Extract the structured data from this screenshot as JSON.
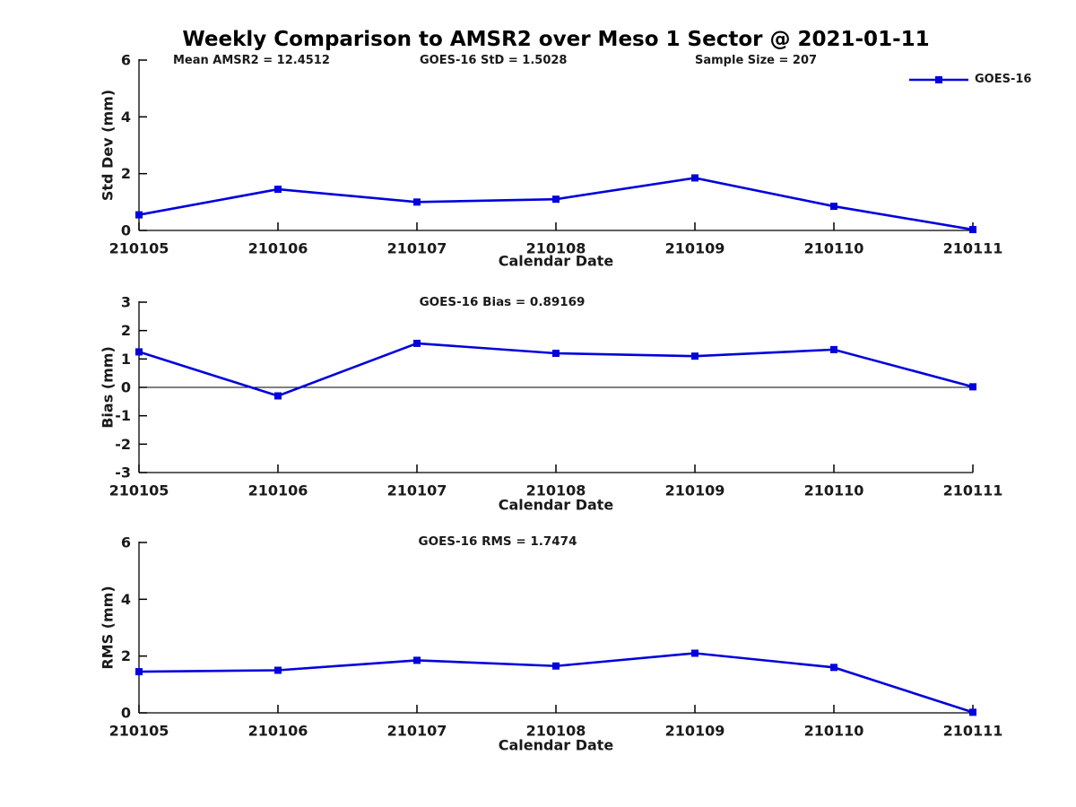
{
  "title": "Weekly Comparison to AMSR2 over Meso 1 Sector @ 2021-01-11",
  "legend": {
    "label": "GOES-16",
    "position": "top-right"
  },
  "colors": {
    "series": "#0000dd",
    "axis": "#000000",
    "text": "#1a1a1a",
    "background": "#ffffff",
    "zero_line": "#000000"
  },
  "chart_data": [
    {
      "type": "line",
      "panel": "std-dev",
      "title": "",
      "xlabel": "Calendar Date",
      "ylabel": "Std Dev (mm)",
      "categories": [
        "210105",
        "210106",
        "210107",
        "210108",
        "210109",
        "210110",
        "210111"
      ],
      "series": [
        {
          "name": "GOES-16",
          "values": [
            0.55,
            1.45,
            1.0,
            1.1,
            1.85,
            0.85,
            0.03
          ]
        }
      ],
      "ylim": [
        0,
        6
      ],
      "yticks": [
        0,
        2,
        4,
        6
      ],
      "grid": false,
      "marker": "square",
      "zero_line": false,
      "annotations": [
        "Mean AMSR2 = 12.4512",
        "GOES-16 StD = 1.5028",
        "Sample Size = 207"
      ],
      "legend_position": "top-right"
    },
    {
      "type": "line",
      "panel": "bias",
      "title": "GOES-16 Bias  = 0.89169",
      "xlabel": "Calendar Date",
      "ylabel": "Bias (mm)",
      "categories": [
        "210105",
        "210106",
        "210107",
        "210108",
        "210109",
        "210110",
        "210111"
      ],
      "series": [
        {
          "name": "GOES-16",
          "values": [
            1.25,
            -0.3,
            1.55,
            1.2,
            1.1,
            1.33,
            0.02
          ]
        }
      ],
      "ylim": [
        -3,
        3
      ],
      "yticks": [
        -3,
        -2,
        -1,
        0,
        1,
        2,
        3
      ],
      "grid": false,
      "marker": "square",
      "zero_line": true,
      "annotations": []
    },
    {
      "type": "line",
      "panel": "rms",
      "title": "GOES-16 RMS = 1.7474",
      "xlabel": "Calendar Date",
      "ylabel": "RMS (mm)",
      "categories": [
        "210105",
        "210106",
        "210107",
        "210108",
        "210109",
        "210110",
        "210111"
      ],
      "series": [
        {
          "name": "GOES-16",
          "values": [
            1.45,
            1.5,
            1.85,
            1.65,
            2.1,
            1.6,
            0.02
          ]
        }
      ],
      "ylim": [
        0,
        6
      ],
      "yticks": [
        0,
        2,
        4,
        6
      ],
      "grid": false,
      "marker": "square",
      "zero_line": false,
      "annotations": []
    }
  ]
}
